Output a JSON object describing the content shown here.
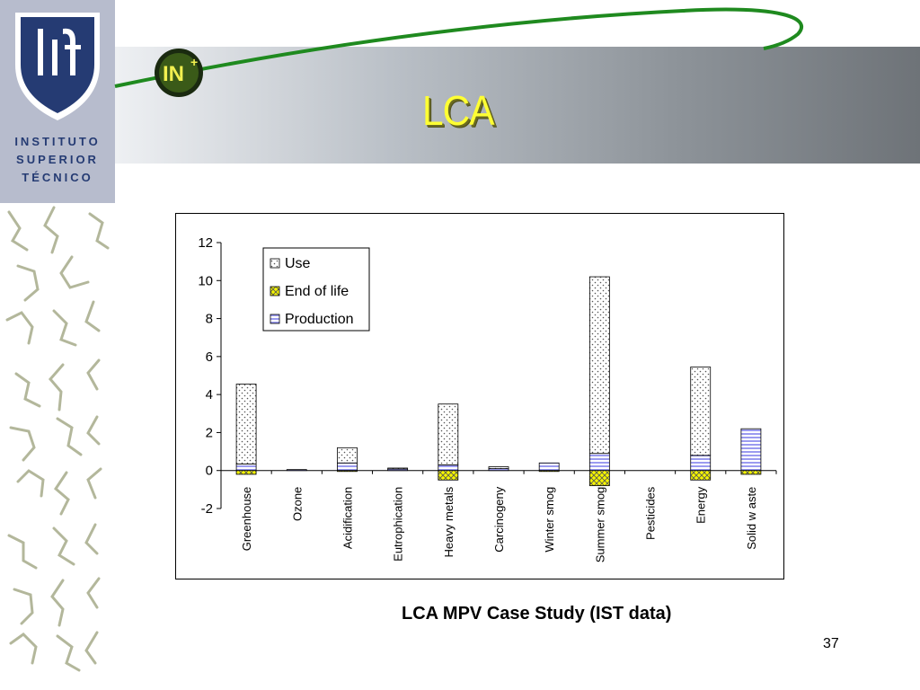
{
  "slide": {
    "title": "LCA",
    "caption": "LCA MPV Case Study (IST data)",
    "page_number": "37",
    "institution": [
      "INSTITUTO",
      "SUPERIOR",
      "TÉCNICO"
    ],
    "colors": {
      "title_yellow": "#ffff33",
      "ist_blue": "#253b73",
      "swoosh_green": "#1f8a1f"
    }
  },
  "chart_data": {
    "type": "bar",
    "stacked": true,
    "categories": [
      "Greenhouse",
      "Ozone",
      "Acidification",
      "Eutrophication",
      "Heavy metals",
      "Carcinogeny",
      "Winter smog",
      "Summer smog",
      "Pesticides",
      "Energy",
      "Solid w aste"
    ],
    "series": [
      {
        "name": "Use",
        "pattern": "dots",
        "values": [
          4.2,
          0.0,
          0.8,
          0.05,
          3.2,
          0.1,
          0.0,
          9.3,
          0.0,
          4.65,
          0.0
        ]
      },
      {
        "name": "End of life",
        "pattern": "yellow-crosshatch",
        "values": [
          -0.2,
          0.0,
          -0.05,
          0.0,
          -0.5,
          0.0,
          -0.05,
          -0.8,
          0.0,
          -0.5,
          -0.2
        ]
      },
      {
        "name": "Production",
        "pattern": "blue-stripes",
        "values": [
          0.35,
          0.05,
          0.4,
          0.08,
          0.3,
          0.1,
          0.4,
          0.9,
          0.0,
          0.8,
          2.2
        ]
      }
    ],
    "yticks": [
      12,
      10,
      8,
      6,
      4,
      2,
      0,
      -2
    ],
    "ylim": [
      -2,
      12
    ],
    "legend_position": "top-left",
    "grid": false,
    "xlabel": "",
    "ylabel": ""
  }
}
